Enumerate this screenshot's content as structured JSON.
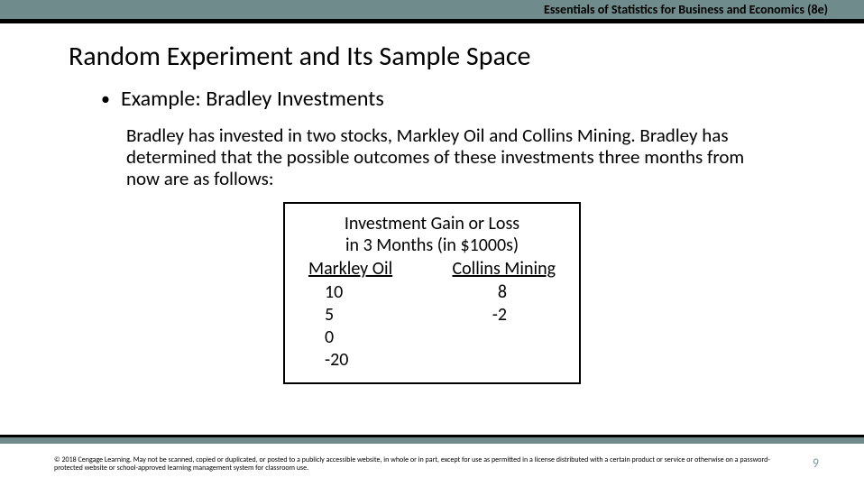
{
  "header": {
    "text": "Essentials of Statistics for Business and Economics (8e)"
  },
  "title": "Random Experiment and Its Sample Space",
  "subtitle": "Example:  Bradley Investments",
  "body": "Bradley has invested in two stocks, Markley Oil and Collins Mining.  Bradley has determined that the possible outcomes of these investments three months from now are as follows:",
  "table": {
    "title_line1": "Investment Gain or Loss",
    "title_line2": "in 3 Months (in $1000s)",
    "col1_header": "Markley Oil",
    "col2_header": "Collins Mining",
    "col1_v1": "10",
    "col1_v2": "5",
    "col1_v3": "0",
    "col1_v4": "-20",
    "col2_v1": "8",
    "col2_v2": "-2"
  },
  "footer": {
    "copyright": "© 2018 Cengage Learning.  May not be scanned, copied or duplicated, or posted to a publicly accessible website, in whole or in part, except for use as permitted in a license distributed with a certain product or service or otherwise on a password-protected website or school-approved learning management system for classroom use."
  },
  "page_number": "9"
}
